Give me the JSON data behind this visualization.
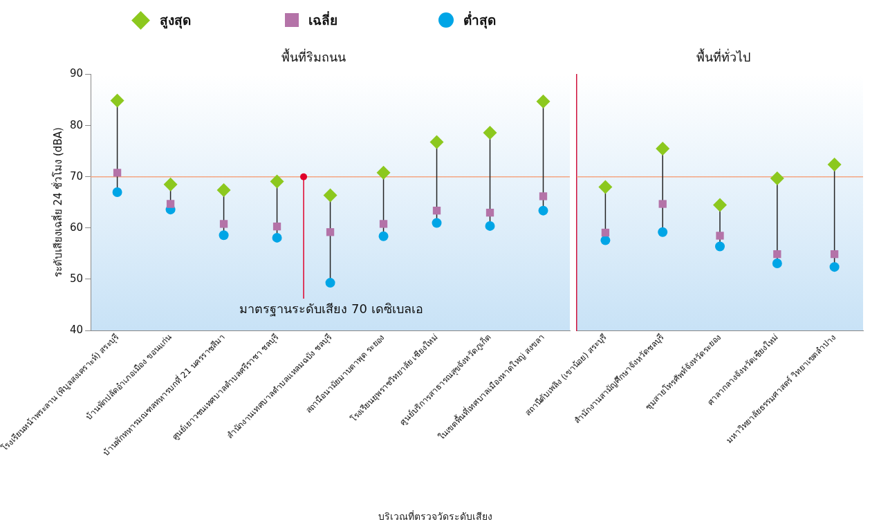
{
  "chart_data": [
    {
      "type": "scatter",
      "title": "พื้นที่ริมถนน",
      "xlabel": "บริเวณที่ตรวจวัดระดับเสียง",
      "ylabel": "ระดับเสียงเฉลี่ย 24 ชั่วโมง (dBA)",
      "categories": [
        "โรงเรียนหน้าพระลาน (พิบูลสงเคราะห์) สระบุรี",
        "บ้านพักปลัดอำเภอเมือง ขอนแก่น",
        "บ้านพักทหารมณฑลทหารบกที่ 21 นครราชสีมา",
        "ศูนย์เยาวชนเทศบาลตำบลศรีราชา ชลบุรี",
        "สำนักงานเทศบาลตำบลแหลมฉบัง ชลบุรี",
        "สถานีอนามัยมาบตาพุด ระยอง",
        "โรงเรียนยุพราชวิทยาลัย เชียงใหม่",
        "ศูนย์บริการสาธารณสุขจังหวัดภูเก็ต",
        "ในเขตพื้นที่เทศบาลเมืองหาดใหญ่ สงขลา"
      ],
      "series": [
        {
          "name": "สูงสุด",
          "color": "#8cc81e",
          "marker": "diamond",
          "values": [
            84.9,
            68.5,
            67.4,
            69.1,
            66.4,
            70.8,
            76.8,
            78.6,
            84.7
          ]
        },
        {
          "name": "เฉลี่ย",
          "color": "#b473a8",
          "marker": "square",
          "values": [
            70.8,
            64.7,
            60.8,
            60.3,
            59.2,
            60.8,
            63.4,
            63.0,
            66.2
          ]
        },
        {
          "name": "ต่ำสุด",
          "color": "#00a5e6",
          "marker": "circle",
          "values": [
            67.0,
            63.6,
            58.6,
            58.1,
            49.3,
            58.4,
            61.0,
            60.4,
            63.4
          ]
        }
      ],
      "ylim": [
        40,
        90
      ],
      "yticks": [
        40,
        50,
        60,
        70,
        80,
        90
      ],
      "grid": false,
      "legend": "top",
      "ref_lines": [
        {
          "axis": "y",
          "value": 70,
          "label": "มาตรฐานระดับเสียง 70 เดซิเบลเอ",
          "color": "#f4a582"
        }
      ]
    },
    {
      "type": "scatter",
      "title": "พื้นที่ทั่วไป",
      "categories": [
        "สถานีดับเพลิง (เขาน้อย) สระบุรี",
        "สำนักงานสามัญศึกษาจังหวัดชลบุรี",
        "ชุมสายโทรศัพท์จังหวัดระยอง",
        "ศาลากลางจังหวัดเชียงใหม่",
        "มหาวิทยาลัยธรรมศาสตร์ วิทยาเขตลำปาง"
      ],
      "series": [
        {
          "color": "#8cc81e",
          "marker": "diamond",
          "values": [
            68.0,
            75.5,
            64.5,
            69.7,
            72.4
          ]
        },
        {
          "color": "#b473a8",
          "marker": "square",
          "values": [
            59.1,
            64.7,
            58.5,
            54.9,
            54.9
          ]
        },
        {
          "color": "#00a5e6",
          "marker": "circle",
          "values": [
            57.6,
            59.2,
            56.4,
            53.1,
            52.4
          ]
        }
      ],
      "ylim": [
        40,
        90
      ],
      "yticks": [
        40,
        50,
        60,
        70,
        80,
        90
      ],
      "grid": false,
      "tick_labels": "x",
      "ref_lines": [
        {
          "axis": "y",
          "value": 70,
          "color": "#f4a582"
        }
      ]
    }
  ]
}
